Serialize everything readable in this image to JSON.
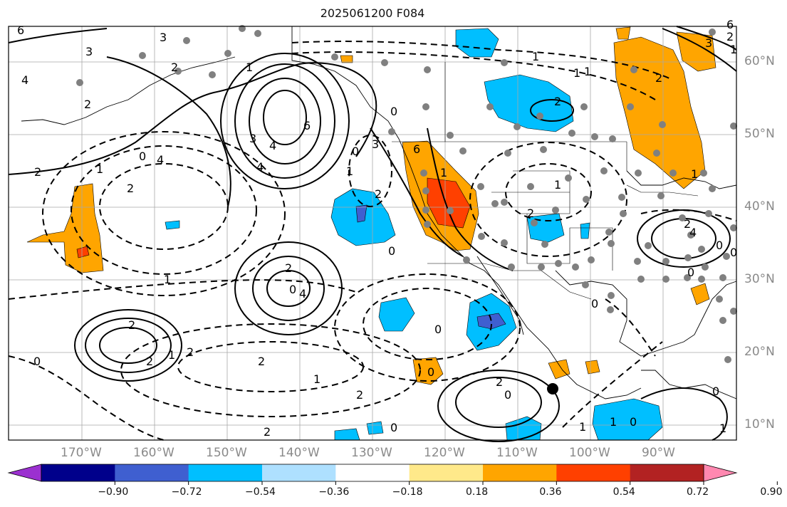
{
  "title": "2025061200 F084",
  "map": {
    "lon_labels": [
      "170°W",
      "160°W",
      "150°W",
      "140°W",
      "130°W",
      "120°W",
      "110°W",
      "100°W",
      "90°W"
    ],
    "lat_labels": [
      "60°N",
      "50°N",
      "40°N",
      "30°N",
      "20°N",
      "10°N"
    ],
    "contour_labels": [
      "6",
      "3",
      "4",
      "2",
      "3",
      "2",
      "1",
      "4",
      "2",
      "1",
      "0",
      "2",
      "3",
      "4",
      "6",
      "4",
      "3",
      "0",
      "1",
      "0",
      "2",
      "6",
      "1",
      "2",
      "4",
      "2",
      "0",
      "2",
      "2",
      "1",
      "2",
      "2",
      "1",
      "2",
      "0",
      "1",
      "0",
      "0",
      "0",
      "0",
      "2",
      "0",
      "1",
      "0",
      "1",
      "1",
      "1",
      "2",
      "2",
      "1",
      "0",
      "1",
      "1",
      "2",
      "4",
      "1",
      "3",
      "2",
      "2",
      "1",
      "6",
      "0",
      "0",
      "0",
      "0"
    ],
    "marker_color": "#000000"
  },
  "colorbar": {
    "ticks": [
      "−0.90",
      "−0.72",
      "−0.54",
      "−0.36",
      "−0.18",
      "0.18",
      "0.36",
      "0.54",
      "0.72",
      "0.90"
    ],
    "colors": [
      "#9b30d0",
      "#00008b",
      "#3f5fd0",
      "#00bfff",
      "#aee0ff",
      "#ffffff",
      "#ffe98a",
      "#ffa500",
      "#ff4000",
      "#b22222",
      "#ff88b0"
    ]
  }
}
